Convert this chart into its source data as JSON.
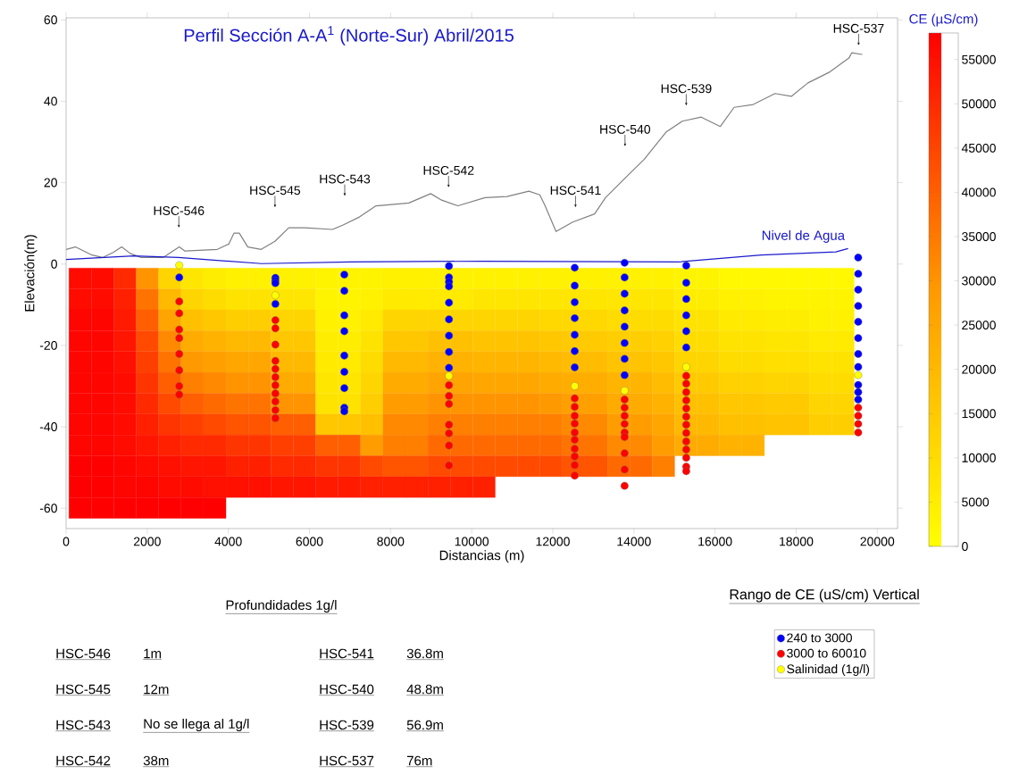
{
  "chart_data": [
    {
      "type": "heatmap",
      "clabel": "CE (µS/cm)",
      "tick_labels": false,
      "clim": [
        0,
        58000
      ],
      "cticks": [
        0,
        5000,
        10000,
        15000,
        20000,
        25000,
        30000,
        35000,
        40000,
        45000,
        50000,
        55000
      ],
      "categories": [
        null,
        null,
        null,
        null,
        null,
        null,
        null,
        null,
        null,
        null,
        null,
        null,
        null,
        null,
        null,
        null,
        null,
        null,
        null,
        null,
        null,
        null,
        null,
        null,
        null,
        null,
        null,
        null,
        null,
        null,
        null,
        null,
        null,
        null,
        null
      ],
      "y_categories": [
        null,
        null,
        null,
        null,
        null,
        null,
        null,
        null,
        null,
        null,
        null,
        null
      ],
      "cells": [
        [
          56000,
          56000,
          50000,
          30000,
          12000,
          7000,
          5000,
          4000,
          4000,
          4000,
          4000,
          3000,
          3000,
          3000,
          4000,
          4000,
          4000,
          4000,
          4000,
          4000,
          4000,
          4000,
          4000,
          4000,
          4000,
          4000,
          4000,
          3000,
          3000,
          2000,
          2000,
          2000,
          2000,
          2000,
          2000
        ],
        [
          56000,
          56000,
          52000,
          36000,
          20000,
          12000,
          10000,
          8000,
          8000,
          7000,
          7000,
          3000,
          3000,
          4000,
          6000,
          6000,
          6000,
          6000,
          7000,
          7000,
          7000,
          7000,
          7000,
          7000,
          7000,
          7000,
          7000,
          5000,
          5000,
          4000,
          4000,
          3000,
          3000,
          3000,
          3000
        ],
        [
          57000,
          57000,
          53000,
          40000,
          26000,
          18000,
          16000,
          14000,
          14000,
          12000,
          12000,
          4000,
          4000,
          6000,
          12000,
          12000,
          12000,
          12000,
          12000,
          12000,
          12000,
          11000,
          11000,
          11000,
          10000,
          10000,
          10000,
          8000,
          8000,
          6000,
          6000,
          5000,
          5000,
          4000,
          4000
        ],
        [
          57000,
          57000,
          54000,
          44000,
          32000,
          24000,
          22000,
          20000,
          20000,
          16000,
          16000,
          5000,
          5000,
          8000,
          16000,
          16000,
          18000,
          18000,
          17000,
          17000,
          17000,
          16000,
          15000,
          15000,
          14000,
          14000,
          13000,
          10000,
          10000,
          8000,
          8000,
          7000,
          7000,
          6000,
          6000
        ],
        [
          57000,
          57000,
          55000,
          46000,
          36000,
          29000,
          27000,
          25000,
          25000,
          20000,
          20000,
          6000,
          6000,
          10000,
          20000,
          20000,
          22000,
          22000,
          21000,
          21000,
          21000,
          20000,
          19000,
          19000,
          17000,
          17000,
          16000,
          12000,
          12000,
          10000,
          10000,
          9000,
          9000,
          8000,
          8000
        ],
        [
          57000,
          57000,
          56000,
          48000,
          40000,
          34000,
          32000,
          30000,
          30000,
          24000,
          24000,
          7000,
          7000,
          12000,
          24000,
          24000,
          26000,
          26000,
          25000,
          25000,
          25000,
          24000,
          23000,
          23000,
          21000,
          21000,
          19000,
          15000,
          15000,
          13000,
          13000,
          12000,
          12000,
          10000,
          10000
        ],
        [
          57000,
          57000,
          56000,
          50000,
          44000,
          40000,
          38000,
          36000,
          36000,
          30000,
          30000,
          8000,
          8000,
          14000,
          28000,
          28000,
          30000,
          30000,
          30000,
          30000,
          30000,
          29000,
          27000,
          27000,
          24000,
          24000,
          22000,
          18000,
          18000,
          16000,
          16000,
          15000,
          15000,
          12000,
          12000
        ],
        [
          57000,
          57000,
          56000,
          52000,
          48000,
          46000,
          44000,
          42000,
          42000,
          40000,
          40000,
          16000,
          16000,
          18000,
          32000,
          32000,
          34000,
          34000,
          34000,
          34000,
          34000,
          34000,
          32000,
          32000,
          28000,
          28000,
          25000,
          20000,
          20000,
          18000,
          18000,
          17000,
          17000,
          14000,
          14000
        ],
        [
          57000,
          57000,
          56000,
          54000,
          52000,
          50000,
          50000,
          48000,
          48000,
          46000,
          46000,
          40000,
          40000,
          28000,
          34000,
          34000,
          38000,
          38000,
          38000,
          38000,
          38000,
          38000,
          36000,
          36000,
          32000,
          32000,
          28000,
          24000,
          24000,
          22000,
          22000,
          null,
          null,
          null,
          null
        ],
        [
          58000,
          58000,
          57000,
          56000,
          55000,
          54000,
          54000,
          52000,
          52000,
          50000,
          50000,
          48000,
          48000,
          44000,
          42000,
          42000,
          44000,
          44000,
          44000,
          44000,
          44000,
          44000,
          42000,
          42000,
          38000,
          38000,
          34000,
          null,
          null,
          null,
          null,
          null,
          null,
          null,
          null
        ],
        [
          58000,
          58000,
          57000,
          57000,
          56000,
          56000,
          55000,
          55000,
          55000,
          54000,
          54000,
          53000,
          53000,
          52000,
          52000,
          52000,
          52000,
          52000,
          52000,
          null,
          null,
          null,
          null,
          null,
          null,
          null,
          null,
          null,
          null,
          null,
          null,
          null,
          null,
          null,
          null
        ],
        [
          58000,
          58000,
          58000,
          58000,
          58000,
          58000,
          58000,
          null,
          null,
          null,
          null,
          null,
          null,
          null,
          null,
          null,
          null,
          null,
          null,
          null,
          null,
          null,
          null,
          null,
          null,
          null,
          null,
          null,
          null,
          null,
          null,
          null,
          null,
          null,
          null
        ]
      ]
    },
    {
      "type": "scatter",
      "title": "Perfil Sección A-A$^{1}$ (Norte-Sur) Abril/2015",
      "xlabel": "Distancias (m)",
      "ylabel": "Elevación(m)",
      "legend_title": "Rango de CE (uS/cm) Vertical",
      "xlim": [
        0,
        20500
      ],
      "ylim": [
        -65,
        60.5
      ],
      "xticks": [
        0,
        2000,
        4000,
        6000,
        8000,
        10000,
        12000,
        14000,
        16000,
        18000,
        20000
      ],
      "yticks": [
        -60,
        -40,
        -20,
        0,
        20,
        40,
        60
      ],
      "legend": "bottom right",
      "marker": "circle",
      "series": [
        {
          "type": "line",
          "marker": "none",
          "color": "#808080",
          "x": [
            0,
            230,
            640,
            900,
            1170,
            1370,
            1580,
            1850,
            2390,
            2790,
            2930,
            3730,
            4010,
            4140,
            4270,
            4480,
            4810,
            5150,
            5490,
            5890,
            6570,
            6830,
            7240,
            7640,
            8450,
            8990,
            9260,
            9660,
            10330,
            10870,
            11410,
            11680,
            11810,
            12080,
            12490,
            13030,
            13300,
            13840,
            14250,
            14790,
            15190,
            15660,
            16130,
            16470,
            16940,
            17480,
            17880,
            18290,
            18830,
            19300,
            19370,
            19630
          ],
          "values": [
            3.6,
            4.2,
            2.2,
            1.6,
            2.9,
            4.2,
            2.6,
            1.6,
            1.6,
            4.2,
            3.2,
            3.6,
            4.9,
            7.6,
            7.6,
            4.2,
            3.6,
            5.6,
            8.9,
            8.9,
            8.5,
            9.6,
            11.6,
            14.3,
            15.0,
            17.3,
            15.7,
            14.3,
            16.3,
            16.6,
            17.9,
            17.0,
            14.3,
            8.0,
            10.3,
            12.3,
            16.3,
            21.7,
            25.7,
            32.4,
            35.1,
            36.1,
            33.8,
            38.5,
            39.2,
            41.9,
            41.2,
            44.5,
            47.2,
            50.6,
            51.9,
            51.5
          ]
        },
        {
          "type": "line",
          "marker": "none",
          "name": "Nivel de Agua",
          "color": "#1a1acc",
          "x": [
            0,
            1670,
            2770,
            4820,
            7020,
            10250,
            15090,
            17140,
            18980,
            19280
          ],
          "values": [
            1.1,
            2.0,
            1.6,
            0.1,
            0.5,
            0.7,
            0.5,
            2.2,
            3.0,
            3.8
          ]
        },
        {
          "name": "240 to 3000",
          "color": "#0000ff",
          "x": [
            2790,
            5160,
            5160,
            5160,
            5160,
            6860,
            6860,
            6860,
            6860,
            6860,
            6860,
            6860,
            6860,
            6860,
            9440,
            9440,
            9440,
            9440,
            9440,
            9440,
            9440,
            9440,
            9440,
            12540,
            12540,
            12540,
            12540,
            12540,
            12540,
            12540,
            13770,
            13770,
            13770,
            13770,
            13770,
            13770,
            13770,
            13770,
            15290,
            15290,
            15290,
            15290,
            15290,
            15290,
            19530,
            19530,
            19530,
            19530,
            19530,
            19530,
            19530,
            19530,
            19530,
            19530,
            19530
          ],
          "values": [
            -3.3,
            -3.4,
            -4.1,
            -4.7,
            -9.8,
            -2.6,
            -6.6,
            -12.6,
            -16.5,
            -22.5,
            -26.5,
            -30.5,
            -35.3,
            -36.2,
            -0.5,
            -3.3,
            -4.4,
            -5.5,
            -9.5,
            -13.6,
            -17.6,
            -21.6,
            -25.5,
            -0.9,
            -5.3,
            -9.4,
            -13.3,
            -17.4,
            -21.4,
            -25.4,
            0.3,
            -3.3,
            -7.3,
            -11.4,
            -15.4,
            -19.4,
            -23.3,
            -27.3,
            -0.4,
            -4.6,
            -8.6,
            -12.6,
            -16.5,
            -20.5,
            1.6,
            -2.4,
            -6.3,
            -10.3,
            -14.2,
            -18.2,
            -22.1,
            -25.3,
            -29.7,
            -31.5,
            -33.3
          ]
        },
        {
          "name": "3000 to 60010",
          "color": "#ff0000",
          "x": [
            2790,
            2790,
            2790,
            2790,
            2790,
            2790,
            2790,
            2790,
            5160,
            5160,
            5160,
            5160,
            5160,
            5160,
            5160,
            5160,
            5160,
            5160,
            5160,
            9440,
            9440,
            9440,
            9440,
            9440,
            9440,
            9440,
            12540,
            12540,
            12540,
            12540,
            12540,
            12540,
            12540,
            12540,
            12540,
            12540,
            13770,
            13770,
            13770,
            13770,
            13770,
            13770,
            13770,
            13770,
            13770,
            15290,
            15290,
            15290,
            15290,
            15290,
            15290,
            15290,
            15290,
            15290,
            15290,
            15290,
            15290,
            15290,
            19530,
            19530,
            19530,
            19530
          ],
          "values": [
            -9.2,
            -12.1,
            -16.1,
            -18.2,
            -22.1,
            -26.1,
            -30.0,
            -32.1,
            -13.8,
            -15.8,
            -19.8,
            -23.8,
            -25.8,
            -27.8,
            -29.8,
            -31.8,
            -33.8,
            -35.9,
            -37.9,
            -29.8,
            -32.4,
            -34.4,
            -39.5,
            -41.6,
            -44.6,
            -49.5,
            -33.0,
            -35.1,
            -37.3,
            -39.2,
            -41.4,
            -43.2,
            -45.4,
            -47.3,
            -49.4,
            -52.0,
            -33.3,
            -35.3,
            -37.3,
            -39.3,
            -41.4,
            -42.5,
            -46.5,
            -50.5,
            -54.5,
            -27.5,
            -29.4,
            -31.5,
            -33.5,
            -35.5,
            -37.5,
            -39.5,
            -41.5,
            -43.6,
            -45.6,
            -47.6,
            -49.8,
            -50.9,
            -35.3,
            -37.3,
            -39.3,
            -41.4
          ]
        },
        {
          "name": "Salinidad (1g/l)",
          "color": "#ffff00",
          "x": [
            2790,
            5160,
            9440,
            12540,
            13770,
            15290,
            19530
          ],
          "values": [
            -0.3,
            -7.7,
            -27.5,
            -30.0,
            -31.1,
            -25.3,
            -27.3
          ]
        }
      ],
      "annotations": [
        {
          "text": "HSC-546",
          "x": 2780,
          "y": 8.9
        },
        {
          "text": "HSC-545",
          "x": 5150,
          "y": 13.9
        },
        {
          "text": "HSC-543",
          "x": 6870,
          "y": 16.7
        },
        {
          "text": "HSC-542",
          "x": 9430,
          "y": 18.8
        },
        {
          "text": "HSC-541",
          "x": 12560,
          "y": 13.9
        },
        {
          "text": "HSC-540",
          "x": 13780,
          "y": 28.9
        },
        {
          "text": "HSC-539",
          "x": 15290,
          "y": 38.9
        },
        {
          "text": "HSC-537",
          "x": 19540,
          "y": 53.7
        },
        "Profundidades 1g/l",
        "HSC-546",
        "1m",
        "HSC-545",
        "12m",
        "HSC-543",
        "No se llega al 1g/l",
        "HSC-542",
        "38m",
        "HSC-541",
        "36.8m",
        "HSC-540",
        "48.8m",
        "HSC-539",
        "56.9m",
        "HSC-537",
        "76m"
      ]
    }
  ]
}
